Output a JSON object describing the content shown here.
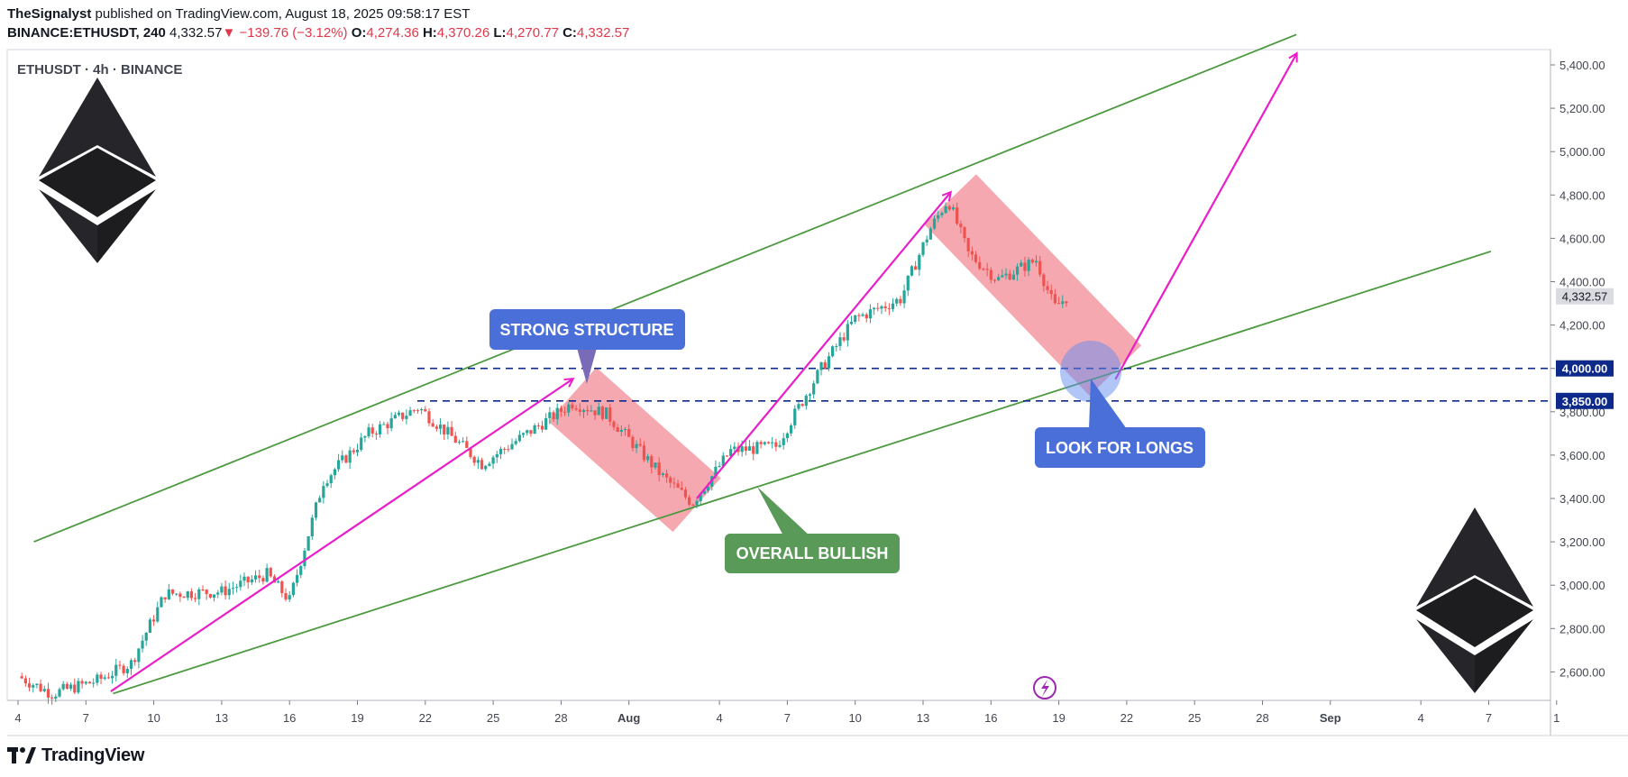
{
  "header": {
    "author": "TheSignalyst",
    "published_text": "published on TradingView.com, August 18, 2025 09:58:17 EST",
    "symbol_interval": "BINANCE:ETHUSDT, 240",
    "last_price": "4,332.57",
    "change": "−139.76 (−3.12%)",
    "open_label": "O:",
    "open": "4,274.36",
    "high_label": "H:",
    "high": "4,370.26",
    "low_label": "L:",
    "low": "4,270.77",
    "close_label": "C:",
    "close": "4,332.57"
  },
  "chart_title": "ETHUSDT · 4h · BINANCE",
  "footer": {
    "brand": "TradingView"
  },
  "colors": {
    "up": "#26a69a",
    "down": "#ef5350",
    "channel": "#4c9a3f",
    "arrow": "#e91ec8",
    "zone": "#f28b95",
    "level": "#0d2a8a",
    "callout_blue": "#4a6fd8",
    "callout_green": "#5a9a58"
  },
  "chart_data": {
    "type": "candlestick",
    "interval": "4h",
    "symbol": "ETHUSDT",
    "y_axis": {
      "range": [
        2450,
        5490
      ],
      "ticks": [
        5400,
        5200,
        5000,
        4800,
        4600,
        4400,
        4200,
        4000,
        3800,
        3600,
        3400,
        3200,
        3000,
        2800,
        2600
      ],
      "tick_labels": [
        "5,400.00",
        "5,200.00",
        "5,000.00",
        "4,800.00",
        "4,600.00",
        "4,400.00",
        "4,200.00",
        "4,000.00",
        "3,800.00",
        "3,600.00",
        "3,400.00",
        "3,200.00",
        "3,000.00",
        "2,800.00",
        "2,600.00"
      ]
    },
    "x_axis": {
      "tick_labels": [
        "4",
        "7",
        "10",
        "13",
        "16",
        "19",
        "22",
        "25",
        "28",
        "Aug",
        "4",
        "7",
        "10",
        "13",
        "16",
        "19",
        "22",
        "25",
        "28",
        "Sep",
        "4",
        "7",
        "1"
      ],
      "tick_days": [
        0,
        3,
        6,
        9,
        12,
        15,
        18,
        21,
        24,
        27,
        31,
        34,
        37,
        40,
        43,
        46,
        49,
        52,
        55,
        58,
        62,
        65,
        68
      ]
    },
    "price_path": [
      {
        "day": 0,
        "price": 2580
      },
      {
        "day": 1.5,
        "price": 2500
      },
      {
        "day": 3.5,
        "price": 2560
      },
      {
        "day": 5,
        "price": 2640
      },
      {
        "day": 6.5,
        "price": 2960
      },
      {
        "day": 9,
        "price": 2970
      },
      {
        "day": 11,
        "price": 3050
      },
      {
        "day": 12,
        "price": 2930
      },
      {
        "day": 13.5,
        "price": 3480
      },
      {
        "day": 15.5,
        "price": 3700
      },
      {
        "day": 17.7,
        "price": 3820
      },
      {
        "day": 19,
        "price": 3700
      },
      {
        "day": 20.5,
        "price": 3560
      },
      {
        "day": 22.5,
        "price": 3700
      },
      {
        "day": 24.5,
        "price": 3840
      },
      {
        "day": 26,
        "price": 3790
      },
      {
        "day": 28.5,
        "price": 3500
      },
      {
        "day": 29.8,
        "price": 3380
      },
      {
        "day": 31.5,
        "price": 3620
      },
      {
        "day": 33.5,
        "price": 3640
      },
      {
        "day": 35.5,
        "price": 4000
      },
      {
        "day": 37,
        "price": 4230
      },
      {
        "day": 39,
        "price": 4320
      },
      {
        "day": 40.3,
        "price": 4640
      },
      {
        "day": 41.1,
        "price": 4780
      },
      {
        "day": 42,
        "price": 4530
      },
      {
        "day": 43.3,
        "price": 4410
      },
      {
        "day": 45,
        "price": 4500
      },
      {
        "day": 45.8,
        "price": 4280
      },
      {
        "day": 46.4,
        "price": 4332.57
      }
    ],
    "last_price": 4332.57,
    "last_price_label": "4,332.57",
    "horizontal_levels": [
      {
        "price": 4000,
        "label": "4,000.00"
      },
      {
        "price": 3850,
        "label": "3,850.00"
      }
    ],
    "channel_lines": [
      {
        "from": {
          "day": 0.7,
          "price": 3200
        },
        "to": {
          "day": 56.5,
          "price": 5540
        }
      },
      {
        "from": {
          "day": 4.2,
          "price": 2500
        },
        "to": {
          "day": 65.1,
          "price": 4540
        }
      }
    ],
    "projection_arrows": [
      {
        "from": {
          "day": 4.1,
          "price": 2510
        },
        "to": {
          "day": 24.5,
          "price": 3950
        }
      },
      {
        "from": {
          "day": 30,
          "price": 3400
        },
        "to": {
          "day": 41.2,
          "price": 4810
        }
      },
      {
        "from": {
          "day": 48.5,
          "price": 3950
        },
        "to": {
          "day": 56.5,
          "price": 5450
        }
      }
    ],
    "correction_zones": [
      {
        "start": {
          "day": 24.5,
          "price": 3880
        },
        "end": {
          "day": 30,
          "price": 3370
        }
      },
      {
        "start": {
          "day": 41.2,
          "price": 4780
        },
        "end": {
          "day": 48.5,
          "price": 3990
        }
      }
    ],
    "annotations": [
      {
        "text": "STRONG STRUCTURE",
        "color": "blue"
      },
      {
        "text": "OVERALL BULLISH",
        "color": "green"
      },
      {
        "text": "LOOK FOR LONGS",
        "color": "blue"
      }
    ]
  }
}
